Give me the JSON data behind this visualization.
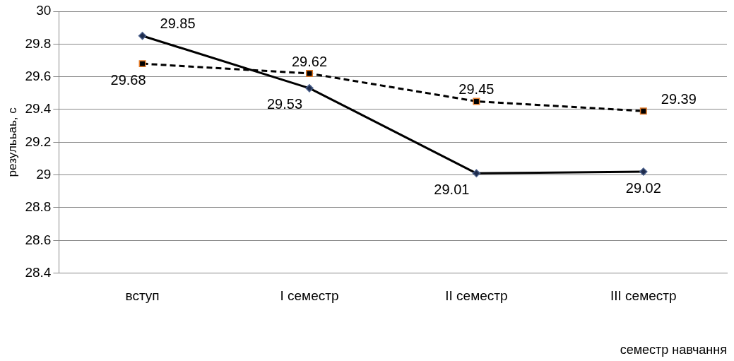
{
  "chart_data": {
    "type": "line",
    "ylabel": "резулььаь, с",
    "xlabel": "семестр навчання",
    "categories": [
      "вступ",
      "І семестр",
      "ІІ семестр",
      "ІІІ семестр"
    ],
    "series": [
      {
        "color": "#000000",
        "values": [
          29.85,
          29.53,
          29.01,
          29.02
        ],
        "marker": "diamond",
        "line_style": "solid"
      },
      {
        "color": "#000000",
        "values": [
          29.68,
          29.62,
          29.45,
          29.39
        ],
        "marker": "square",
        "line_style": "dashed"
      }
    ],
    "ylim": [
      28.4,
      30
    ],
    "yticks": [
      28.4,
      28.6,
      28.8,
      29,
      29.2,
      29.4,
      29.6,
      29.8,
      30
    ],
    "grid": "y",
    "legend": false,
    "data_labels": true
  }
}
